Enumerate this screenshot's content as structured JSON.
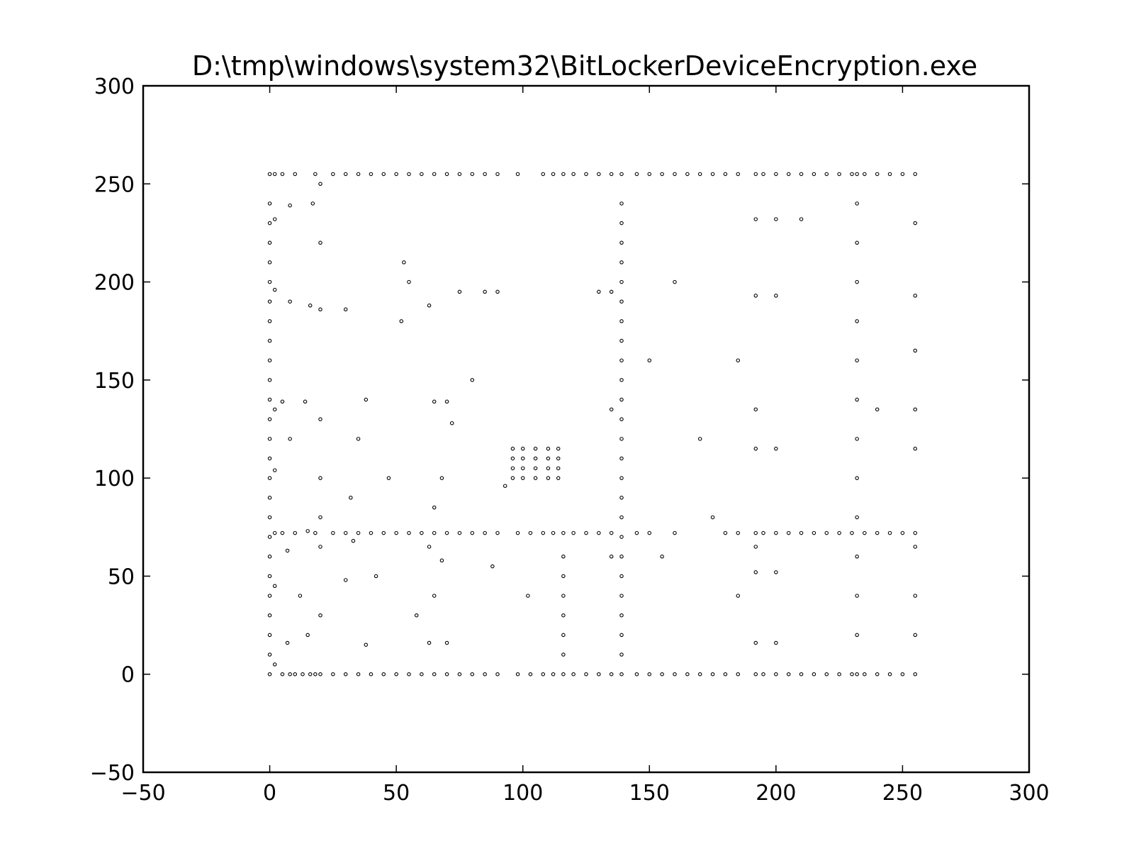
{
  "chart_data": {
    "type": "scatter",
    "title": "D:\\tmp\\windows\\system32\\BitLockerDeviceEncryption.exe",
    "xlabel": "",
    "ylabel": "",
    "xlim": [
      -50,
      300
    ],
    "ylim": [
      -50,
      300
    ],
    "x_ticks": [
      -50,
      0,
      50,
      100,
      150,
      200,
      250,
      300
    ],
    "y_ticks": [
      -50,
      0,
      50,
      100,
      150,
      200,
      250,
      300
    ],
    "x_tick_labels": [
      "−50",
      "0",
      "50",
      "100",
      "150",
      "200",
      "250",
      "300"
    ],
    "y_tick_labels": [
      "−50",
      "0",
      "50",
      "100",
      "150",
      "200",
      "250",
      "300"
    ],
    "grid": false,
    "legend": "none",
    "point_color": "#000000",
    "point_shape": "hollow-circle",
    "series": [
      {
        "points": [
          [
            0,
            0
          ],
          [
            0,
            10
          ],
          [
            0,
            20
          ],
          [
            0,
            30
          ],
          [
            0,
            40
          ],
          [
            0,
            50
          ],
          [
            0,
            60
          ],
          [
            0,
            70
          ],
          [
            0,
            80
          ],
          [
            0,
            90
          ],
          [
            0,
            100
          ],
          [
            0,
            110
          ],
          [
            0,
            120
          ],
          [
            0,
            130
          ],
          [
            0,
            140
          ],
          [
            0,
            150
          ],
          [
            0,
            160
          ],
          [
            0,
            170
          ],
          [
            0,
            180
          ],
          [
            0,
            190
          ],
          [
            0,
            200
          ],
          [
            0,
            210
          ],
          [
            0,
            220
          ],
          [
            0,
            230
          ],
          [
            0,
            240
          ],
          [
            0,
            255
          ],
          [
            2,
            5
          ],
          [
            2,
            45
          ],
          [
            2,
            72
          ],
          [
            2,
            104
          ],
          [
            2,
            135
          ],
          [
            2,
            196
          ],
          [
            2,
            232
          ],
          [
            2,
            255
          ],
          [
            5,
            0
          ],
          [
            5,
            72
          ],
          [
            5,
            139
          ],
          [
            5,
            255
          ],
          [
            7,
            16
          ],
          [
            7,
            63
          ],
          [
            8,
            0
          ],
          [
            8,
            120
          ],
          [
            8,
            190
          ],
          [
            8,
            239
          ],
          [
            10,
            0
          ],
          [
            10,
            72
          ],
          [
            10,
            255
          ],
          [
            12,
            40
          ],
          [
            13,
            0
          ],
          [
            14,
            139
          ],
          [
            15,
            20
          ],
          [
            15,
            73
          ],
          [
            16,
            0
          ],
          [
            16,
            188
          ],
          [
            17,
            240
          ],
          [
            18,
            0
          ],
          [
            18,
            72
          ],
          [
            18,
            255
          ],
          [
            20,
            0
          ],
          [
            20,
            30
          ],
          [
            20,
            65
          ],
          [
            20,
            80
          ],
          [
            20,
            100
          ],
          [
            20,
            130
          ],
          [
            20,
            186
          ],
          [
            20,
            220
          ],
          [
            20,
            250
          ],
          [
            25,
            0
          ],
          [
            25,
            72
          ],
          [
            25,
            255
          ],
          [
            30,
            0
          ],
          [
            30,
            48
          ],
          [
            30,
            72
          ],
          [
            30,
            186
          ],
          [
            30,
            255
          ],
          [
            32,
            90
          ],
          [
            33,
            68
          ],
          [
            35,
            0
          ],
          [
            35,
            72
          ],
          [
            35,
            120
          ],
          [
            35,
            255
          ],
          [
            38,
            15
          ],
          [
            38,
            140
          ],
          [
            40,
            0
          ],
          [
            40,
            72
          ],
          [
            40,
            255
          ],
          [
            42,
            50
          ],
          [
            45,
            0
          ],
          [
            45,
            72
          ],
          [
            45,
            255
          ],
          [
            47,
            100
          ],
          [
            50,
            0
          ],
          [
            50,
            72
          ],
          [
            50,
            255
          ],
          [
            52,
            180
          ],
          [
            53,
            210
          ],
          [
            55,
            0
          ],
          [
            55,
            72
          ],
          [
            55,
            200
          ],
          [
            55,
            255
          ],
          [
            58,
            30
          ],
          [
            60,
            0
          ],
          [
            60,
            72
          ],
          [
            60,
            255
          ],
          [
            63,
            16
          ],
          [
            63,
            65
          ],
          [
            63,
            188
          ],
          [
            65,
            0
          ],
          [
            65,
            40
          ],
          [
            65,
            72
          ],
          [
            65,
            85
          ],
          [
            65,
            139
          ],
          [
            65,
            255
          ],
          [
            68,
            58
          ],
          [
            68,
            100
          ],
          [
            70,
            0
          ],
          [
            70,
            16
          ],
          [
            70,
            72
          ],
          [
            70,
            139
          ],
          [
            70,
            255
          ],
          [
            72,
            128
          ],
          [
            75,
            0
          ],
          [
            75,
            72
          ],
          [
            75,
            195
          ],
          [
            75,
            255
          ],
          [
            80,
            0
          ],
          [
            80,
            72
          ],
          [
            80,
            150
          ],
          [
            80,
            255
          ],
          [
            85,
            0
          ],
          [
            85,
            72
          ],
          [
            85,
            195
          ],
          [
            85,
            255
          ],
          [
            88,
            55
          ],
          [
            90,
            0
          ],
          [
            90,
            72
          ],
          [
            90,
            195
          ],
          [
            90,
            255
          ],
          [
            93,
            96
          ],
          [
            96,
            100
          ],
          [
            96,
            105
          ],
          [
            96,
            110
          ],
          [
            96,
            115
          ],
          [
            98,
            0
          ],
          [
            98,
            72
          ],
          [
            98,
            255
          ],
          [
            100,
            100
          ],
          [
            100,
            105
          ],
          [
            100,
            110
          ],
          [
            100,
            115
          ],
          [
            102,
            40
          ],
          [
            103,
            0
          ],
          [
            103,
            72
          ],
          [
            105,
            100
          ],
          [
            105,
            105
          ],
          [
            105,
            110
          ],
          [
            105,
            115
          ],
          [
            108,
            0
          ],
          [
            108,
            72
          ],
          [
            108,
            255
          ],
          [
            110,
            100
          ],
          [
            110,
            105
          ],
          [
            110,
            110
          ],
          [
            110,
            115
          ],
          [
            112,
            0
          ],
          [
            112,
            72
          ],
          [
            112,
            255
          ],
          [
            114,
            100
          ],
          [
            114,
            105
          ],
          [
            114,
            110
          ],
          [
            114,
            115
          ],
          [
            116,
            0
          ],
          [
            116,
            10
          ],
          [
            116,
            20
          ],
          [
            116,
            30
          ],
          [
            116,
            40
          ],
          [
            116,
            50
          ],
          [
            116,
            60
          ],
          [
            116,
            72
          ],
          [
            116,
            255
          ],
          [
            120,
            0
          ],
          [
            120,
            72
          ],
          [
            120,
            255
          ],
          [
            125,
            0
          ],
          [
            125,
            72
          ],
          [
            125,
            255
          ],
          [
            130,
            0
          ],
          [
            130,
            72
          ],
          [
            130,
            195
          ],
          [
            130,
            255
          ],
          [
            135,
            0
          ],
          [
            135,
            60
          ],
          [
            135,
            72
          ],
          [
            135,
            135
          ],
          [
            135,
            195
          ],
          [
            135,
            255
          ],
          [
            139,
            0
          ],
          [
            139,
            10
          ],
          [
            139,
            20
          ],
          [
            139,
            30
          ],
          [
            139,
            40
          ],
          [
            139,
            50
          ],
          [
            139,
            60
          ],
          [
            139,
            70
          ],
          [
            139,
            80
          ],
          [
            139,
            90
          ],
          [
            139,
            100
          ],
          [
            139,
            110
          ],
          [
            139,
            120
          ],
          [
            139,
            130
          ],
          [
            139,
            140
          ],
          [
            139,
            150
          ],
          [
            139,
            160
          ],
          [
            139,
            170
          ],
          [
            139,
            180
          ],
          [
            139,
            190
          ],
          [
            139,
            200
          ],
          [
            139,
            210
          ],
          [
            139,
            220
          ],
          [
            139,
            230
          ],
          [
            139,
            240
          ],
          [
            139,
            255
          ],
          [
            145,
            0
          ],
          [
            145,
            72
          ],
          [
            145,
            255
          ],
          [
            150,
            0
          ],
          [
            150,
            72
          ],
          [
            150,
            160
          ],
          [
            150,
            255
          ],
          [
            155,
            0
          ],
          [
            155,
            60
          ],
          [
            155,
            255
          ],
          [
            160,
            0
          ],
          [
            160,
            72
          ],
          [
            160,
            200
          ],
          [
            160,
            255
          ],
          [
            165,
            0
          ],
          [
            165,
            255
          ],
          [
            170,
            0
          ],
          [
            170,
            120
          ],
          [
            170,
            255
          ],
          [
            175,
            0
          ],
          [
            175,
            80
          ],
          [
            175,
            255
          ],
          [
            180,
            0
          ],
          [
            180,
            72
          ],
          [
            180,
            255
          ],
          [
            185,
            0
          ],
          [
            185,
            40
          ],
          [
            185,
            72
          ],
          [
            185,
            160
          ],
          [
            185,
            255
          ],
          [
            192,
            0
          ],
          [
            192,
            16
          ],
          [
            192,
            52
          ],
          [
            192,
            65
          ],
          [
            192,
            72
          ],
          [
            192,
            115
          ],
          [
            192,
            135
          ],
          [
            192,
            193
          ],
          [
            192,
            232
          ],
          [
            192,
            255
          ],
          [
            195,
            0
          ],
          [
            195,
            72
          ],
          [
            195,
            255
          ],
          [
            200,
            0
          ],
          [
            200,
            16
          ],
          [
            200,
            52
          ],
          [
            200,
            72
          ],
          [
            200,
            115
          ],
          [
            200,
            193
          ],
          [
            200,
            232
          ],
          [
            200,
            255
          ],
          [
            205,
            0
          ],
          [
            205,
            72
          ],
          [
            205,
            255
          ],
          [
            210,
            0
          ],
          [
            210,
            72
          ],
          [
            210,
            232
          ],
          [
            210,
            255
          ],
          [
            215,
            0
          ],
          [
            215,
            72
          ],
          [
            215,
            255
          ],
          [
            220,
            0
          ],
          [
            220,
            72
          ],
          [
            220,
            255
          ],
          [
            225,
            0
          ],
          [
            225,
            72
          ],
          [
            225,
            255
          ],
          [
            230,
            0
          ],
          [
            230,
            72
          ],
          [
            230,
            255
          ],
          [
            232,
            0
          ],
          [
            232,
            20
          ],
          [
            232,
            40
          ],
          [
            232,
            60
          ],
          [
            232,
            80
          ],
          [
            232,
            100
          ],
          [
            232,
            120
          ],
          [
            232,
            140
          ],
          [
            232,
            160
          ],
          [
            232,
            180
          ],
          [
            232,
            200
          ],
          [
            232,
            220
          ],
          [
            232,
            240
          ],
          [
            232,
            255
          ],
          [
            235,
            0
          ],
          [
            235,
            72
          ],
          [
            235,
            255
          ],
          [
            240,
            0
          ],
          [
            240,
            72
          ],
          [
            240,
            135
          ],
          [
            240,
            255
          ],
          [
            245,
            0
          ],
          [
            245,
            72
          ],
          [
            245,
            255
          ],
          [
            250,
            0
          ],
          [
            250,
            72
          ],
          [
            250,
            255
          ],
          [
            255,
            0
          ],
          [
            255,
            20
          ],
          [
            255,
            40
          ],
          [
            255,
            65
          ],
          [
            255,
            72
          ],
          [
            255,
            115
          ],
          [
            255,
            135
          ],
          [
            255,
            165
          ],
          [
            255,
            193
          ],
          [
            255,
            230
          ],
          [
            255,
            255
          ]
        ]
      }
    ]
  }
}
